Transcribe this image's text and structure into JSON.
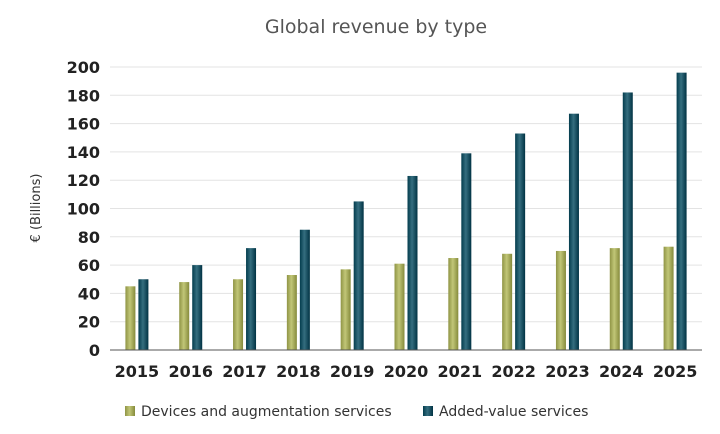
{
  "chart_data": {
    "type": "bar",
    "title": "Global revenue by type",
    "ylabel": "€ (Billions)",
    "xlabel": "",
    "ylim": [
      0,
      200
    ],
    "yticks": [
      0,
      20,
      40,
      60,
      80,
      100,
      120,
      140,
      160,
      180,
      200
    ],
    "grid": true,
    "legend_position": "bottom",
    "categories": [
      "2015",
      "2016",
      "2017",
      "2018",
      "2019",
      "2020",
      "2021",
      "2022",
      "2023",
      "2024",
      "2025"
    ],
    "series": [
      {
        "name": "Devices and augmentation services",
        "color": "#a8ad5e",
        "values": [
          45,
          48,
          50,
          53,
          57,
          61,
          65,
          68,
          70,
          72,
          73
        ]
      },
      {
        "name": "Added-value services",
        "color": "#1c5566",
        "values": [
          50,
          60,
          72,
          85,
          105,
          123,
          139,
          153,
          167,
          182,
          196
        ]
      }
    ]
  }
}
